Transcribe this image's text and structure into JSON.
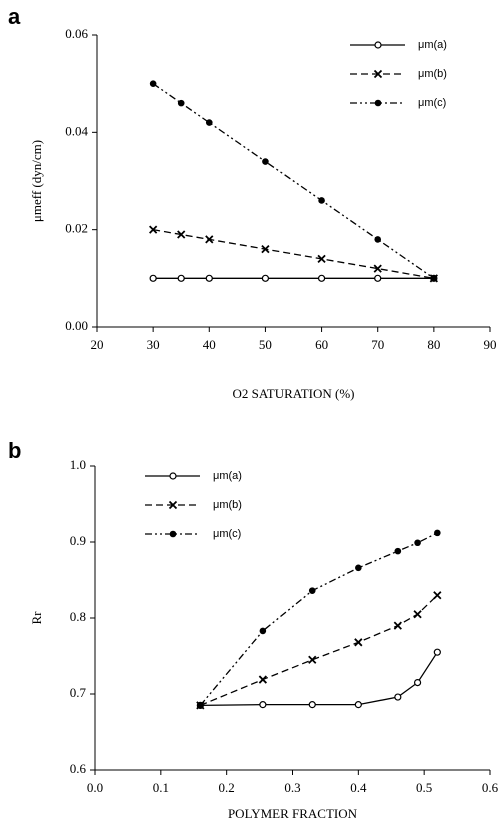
{
  "chart_data": [
    {
      "type": "line",
      "panel_label": "a",
      "xlabel": "O2 SATURATION (%)",
      "ylabel": "μmeff (dyn/cm)",
      "x": [
        30,
        35,
        40,
        50,
        60,
        70,
        80
      ],
      "series": [
        {
          "name": "μm(a)",
          "color": "#000000",
          "values": [
            0.01,
            0.01,
            0.01,
            0.01,
            0.01,
            0.01,
            0.01
          ]
        },
        {
          "name": "μm(b)",
          "color": "#000000",
          "values": [
            0.02,
            0.019,
            0.018,
            0.016,
            0.014,
            0.012,
            0.01
          ]
        },
        {
          "name": "μm(c)",
          "color": "#000000",
          "values": [
            0.05,
            0.046,
            0.042,
            0.034,
            0.026,
            0.018,
            0.01
          ]
        }
      ],
      "xlim": [
        20,
        90
      ],
      "xticks": [
        20,
        30,
        40,
        50,
        60,
        70,
        80,
        90
      ],
      "ylim": [
        0,
        0.06
      ],
      "yticks": [
        {
          "value": 0,
          "label": "0.00"
        },
        0.02,
        0.04,
        0.06
      ],
      "legend": "upper right"
    },
    {
      "type": "line",
      "panel_label": "b",
      "xlabel": "POLYMER FRACTION",
      "ylabel": "Rr",
      "x": [
        0.16,
        0.255,
        0.33,
        0.4,
        0.46,
        0.49,
        0.52
      ],
      "series": [
        {
          "name": "μm(a)",
          "color": "#000000",
          "values": [
            0.685,
            0.686,
            0.686,
            0.686,
            0.696,
            0.715,
            0.755
          ]
        },
        {
          "name": "μm(b)",
          "color": "#000000",
          "values": [
            0.685,
            0.719,
            0.745,
            0.768,
            0.79,
            0.805,
            0.83
          ]
        },
        {
          "name": "μm(c)",
          "color": "#000000",
          "values": [
            0.685,
            0.783,
            0.836,
            0.866,
            0.888,
            0.899,
            0.912
          ]
        }
      ],
      "xlim": [
        0,
        0.6
      ],
      "xticks": [
        {
          "value": 0,
          "label": "0.0"
        },
        0.1,
        0.2,
        0.3,
        0.4,
        0.5,
        0.6
      ],
      "ylim": [
        0.6,
        1.0
      ],
      "yticks": [
        0.6,
        0.7,
        0.8,
        0.9,
        {
          "value": 1.0,
          "label": "1.0"
        }
      ],
      "legend": "upper left"
    }
  ]
}
